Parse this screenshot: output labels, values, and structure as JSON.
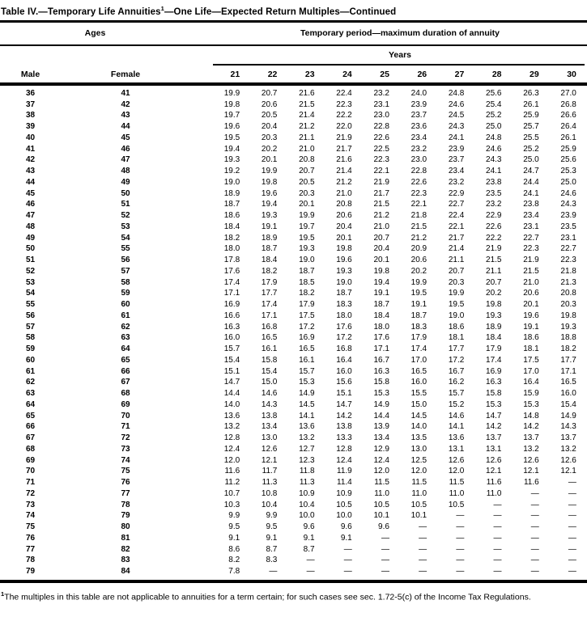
{
  "title": {
    "pre": "Table IV.—Temporary Life Annuities",
    "sup": "1",
    "post": "—One Life—Expected Return Multiples—Continued"
  },
  "table": {
    "ages_header": "Ages",
    "period_header": "Temporary period—maximum duration of annuity",
    "years_header": "Years",
    "male_header": "Male",
    "female_header": "Female",
    "year_columns": [
      "21",
      "22",
      "23",
      "24",
      "25",
      "26",
      "27",
      "28",
      "29",
      "30"
    ],
    "rows": [
      {
        "male": "36",
        "female": "41",
        "values": [
          "19.9",
          "20.7",
          "21.6",
          "22.4",
          "23.2",
          "24.0",
          "24.8",
          "25.6",
          "26.3",
          "27.0"
        ]
      },
      {
        "male": "37",
        "female": "42",
        "values": [
          "19.8",
          "20.6",
          "21.5",
          "22.3",
          "23.1",
          "23.9",
          "24.6",
          "25.4",
          "26.1",
          "26.8"
        ]
      },
      {
        "male": "38",
        "female": "43",
        "values": [
          "19.7",
          "20.5",
          "21.4",
          "22.2",
          "23.0",
          "23.7",
          "24.5",
          "25.2",
          "25.9",
          "26.6"
        ]
      },
      {
        "male": "39",
        "female": "44",
        "values": [
          "19.6",
          "20.4",
          "21.2",
          "22.0",
          "22.8",
          "23.6",
          "24.3",
          "25.0",
          "25.7",
          "26.4"
        ]
      },
      {
        "male": "40",
        "female": "45",
        "values": [
          "19.5",
          "20.3",
          "21.1",
          "21.9",
          "22.6",
          "23.4",
          "24.1",
          "24.8",
          "25.5",
          "26.1"
        ]
      },
      {
        "male": "41",
        "female": "46",
        "values": [
          "19.4",
          "20.2",
          "21.0",
          "21.7",
          "22.5",
          "23.2",
          "23.9",
          "24.6",
          "25.2",
          "25.9"
        ]
      },
      {
        "male": "42",
        "female": "47",
        "values": [
          "19.3",
          "20.1",
          "20.8",
          "21.6",
          "22.3",
          "23.0",
          "23.7",
          "24.3",
          "25.0",
          "25.6"
        ]
      },
      {
        "male": "43",
        "female": "48",
        "values": [
          "19.2",
          "19.9",
          "20.7",
          "21.4",
          "22.1",
          "22.8",
          "23.4",
          "24.1",
          "24.7",
          "25.3"
        ]
      },
      {
        "male": "44",
        "female": "49",
        "values": [
          "19.0",
          "19.8",
          "20.5",
          "21.2",
          "21.9",
          "22.6",
          "23.2",
          "23.8",
          "24.4",
          "25.0"
        ]
      },
      {
        "male": "45",
        "female": "50",
        "values": [
          "18.9",
          "19.6",
          "20.3",
          "21.0",
          "21.7",
          "22.3",
          "22.9",
          "23.5",
          "24.1",
          "24.6"
        ]
      },
      {
        "male": "46",
        "female": "51",
        "values": [
          "18.7",
          "19.4",
          "20.1",
          "20.8",
          "21.5",
          "22.1",
          "22.7",
          "23.2",
          "23.8",
          "24.3"
        ]
      },
      {
        "male": "47",
        "female": "52",
        "values": [
          "18.6",
          "19.3",
          "19.9",
          "20.6",
          "21.2",
          "21.8",
          "22.4",
          "22.9",
          "23.4",
          "23.9"
        ]
      },
      {
        "male": "48",
        "female": "53",
        "values": [
          "18.4",
          "19.1",
          "19.7",
          "20.4",
          "21.0",
          "21.5",
          "22.1",
          "22.6",
          "23.1",
          "23.5"
        ]
      },
      {
        "male": "49",
        "female": "54",
        "values": [
          "18.2",
          "18.9",
          "19.5",
          "20.1",
          "20.7",
          "21.2",
          "21.7",
          "22.2",
          "22.7",
          "23.1"
        ]
      },
      {
        "male": "50",
        "female": "55",
        "values": [
          "18.0",
          "18.7",
          "19.3",
          "19.8",
          "20.4",
          "20.9",
          "21.4",
          "21.9",
          "22.3",
          "22.7"
        ]
      },
      {
        "male": "51",
        "female": "56",
        "values": [
          "17.8",
          "18.4",
          "19.0",
          "19.6",
          "20.1",
          "20.6",
          "21.1",
          "21.5",
          "21.9",
          "22.3"
        ]
      },
      {
        "male": "52",
        "female": "57",
        "values": [
          "17.6",
          "18.2",
          "18.7",
          "19.3",
          "19.8",
          "20.2",
          "20.7",
          "21.1",
          "21.5",
          "21.8"
        ]
      },
      {
        "male": "53",
        "female": "58",
        "values": [
          "17.4",
          "17.9",
          "18.5",
          "19.0",
          "19.4",
          "19.9",
          "20.3",
          "20.7",
          "21.0",
          "21.3"
        ]
      },
      {
        "male": "54",
        "female": "59",
        "values": [
          "17.1",
          "17.7",
          "18.2",
          "18.7",
          "19.1",
          "19.5",
          "19.9",
          "20.2",
          "20.6",
          "20.8"
        ]
      },
      {
        "male": "55",
        "female": "60",
        "values": [
          "16.9",
          "17.4",
          "17.9",
          "18.3",
          "18.7",
          "19.1",
          "19.5",
          "19.8",
          "20.1",
          "20.3"
        ]
      },
      {
        "male": "56",
        "female": "61",
        "values": [
          "16.6",
          "17.1",
          "17.5",
          "18.0",
          "18.4",
          "18.7",
          "19.0",
          "19.3",
          "19.6",
          "19.8"
        ]
      },
      {
        "male": "57",
        "female": "62",
        "values": [
          "16.3",
          "16.8",
          "17.2",
          "17.6",
          "18.0",
          "18.3",
          "18.6",
          "18.9",
          "19.1",
          "19.3"
        ]
      },
      {
        "male": "58",
        "female": "63",
        "values": [
          "16.0",
          "16.5",
          "16.9",
          "17.2",
          "17.6",
          "17.9",
          "18.1",
          "18.4",
          "18.6",
          "18.8"
        ]
      },
      {
        "male": "59",
        "female": "64",
        "values": [
          "15.7",
          "16.1",
          "16.5",
          "16.8",
          "17.1",
          "17.4",
          "17.7",
          "17.9",
          "18.1",
          "18.2"
        ]
      },
      {
        "male": "60",
        "female": "65",
        "values": [
          "15.4",
          "15.8",
          "16.1",
          "16.4",
          "16.7",
          "17.0",
          "17.2",
          "17.4",
          "17.5",
          "17.7"
        ]
      },
      {
        "male": "61",
        "female": "66",
        "values": [
          "15.1",
          "15.4",
          "15.7",
          "16.0",
          "16.3",
          "16.5",
          "16.7",
          "16.9",
          "17.0",
          "17.1"
        ]
      },
      {
        "male": "62",
        "female": "67",
        "values": [
          "14.7",
          "15.0",
          "15.3",
          "15.6",
          "15.8",
          "16.0",
          "16.2",
          "16.3",
          "16.4",
          "16.5"
        ]
      },
      {
        "male": "63",
        "female": "68",
        "values": [
          "14.4",
          "14.6",
          "14.9",
          "15.1",
          "15.3",
          "15.5",
          "15.7",
          "15.8",
          "15.9",
          "16.0"
        ]
      },
      {
        "male": "64",
        "female": "69",
        "values": [
          "14.0",
          "14.3",
          "14.5",
          "14.7",
          "14.9",
          "15.0",
          "15.2",
          "15.3",
          "15.3",
          "15.4"
        ]
      },
      {
        "male": "65",
        "female": "70",
        "values": [
          "13.6",
          "13.8",
          "14.1",
          "14.2",
          "14.4",
          "14.5",
          "14.6",
          "14.7",
          "14.8",
          "14.9"
        ]
      },
      {
        "male": "66",
        "female": "71",
        "values": [
          "13.2",
          "13.4",
          "13.6",
          "13.8",
          "13.9",
          "14.0",
          "14.1",
          "14.2",
          "14.2",
          "14.3"
        ]
      },
      {
        "male": "67",
        "female": "72",
        "values": [
          "12.8",
          "13.0",
          "13.2",
          "13.3",
          "13.4",
          "13.5",
          "13.6",
          "13.7",
          "13.7",
          "13.7"
        ]
      },
      {
        "male": "68",
        "female": "73",
        "values": [
          "12.4",
          "12.6",
          "12.7",
          "12.8",
          "12.9",
          "13.0",
          "13.1",
          "13.1",
          "13.2",
          "13.2"
        ]
      },
      {
        "male": "69",
        "female": "74",
        "values": [
          "12.0",
          "12.1",
          "12.3",
          "12.4",
          "12.4",
          "12.5",
          "12.6",
          "12.6",
          "12.6",
          "12.6"
        ]
      },
      {
        "male": "70",
        "female": "75",
        "values": [
          "11.6",
          "11.7",
          "11.8",
          "11.9",
          "12.0",
          "12.0",
          "12.0",
          "12.1",
          "12.1",
          "12.1"
        ]
      },
      {
        "male": "71",
        "female": "76",
        "values": [
          "11.2",
          "11.3",
          "11.3",
          "11.4",
          "11.5",
          "11.5",
          "11.5",
          "11.6",
          "11.6",
          "—"
        ]
      },
      {
        "male": "72",
        "female": "77",
        "values": [
          "10.7",
          "10.8",
          "10.9",
          "10.9",
          "11.0",
          "11.0",
          "11.0",
          "11.0",
          "—",
          "—"
        ]
      },
      {
        "male": "73",
        "female": "78",
        "values": [
          "10.3",
          "10.4",
          "10.4",
          "10.5",
          "10.5",
          "10.5",
          "10.5",
          "—",
          "—",
          "—"
        ]
      },
      {
        "male": "74",
        "female": "79",
        "values": [
          "9.9",
          "9.9",
          "10.0",
          "10.0",
          "10.1",
          "10.1",
          "—",
          "—",
          "—",
          "—"
        ]
      },
      {
        "male": "75",
        "female": "80",
        "values": [
          "9.5",
          "9.5",
          "9.6",
          "9.6",
          "9.6",
          "—",
          "—",
          "—",
          "—",
          "—"
        ]
      },
      {
        "male": "76",
        "female": "81",
        "values": [
          "9.1",
          "9.1",
          "9.1",
          "9.1",
          "—",
          "—",
          "—",
          "—",
          "—",
          "—"
        ]
      },
      {
        "male": "77",
        "female": "82",
        "values": [
          "8.6",
          "8.7",
          "8.7",
          "—",
          "—",
          "—",
          "—",
          "—",
          "—",
          "—"
        ]
      },
      {
        "male": "78",
        "female": "83",
        "values": [
          "8.2",
          "8.3",
          "—",
          "—",
          "—",
          "—",
          "—",
          "—",
          "—",
          "—"
        ]
      },
      {
        "male": "79",
        "female": "84",
        "values": [
          "7.8",
          "—",
          "—",
          "—",
          "—",
          "—",
          "—",
          "—",
          "—",
          "—"
        ]
      }
    ]
  },
  "footnote": {
    "sup": "1",
    "text": "The multiples in this table are not applicable to annuities for a term certain; for such cases see sec. 1.72-5(c) of the Income Tax Regulations."
  }
}
